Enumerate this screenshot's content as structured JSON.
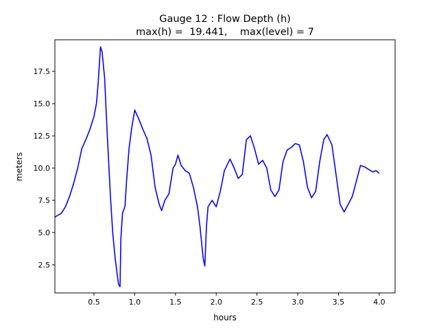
{
  "chart_data": {
    "type": "line",
    "title": "Gauge 12 : Flow Depth (h)",
    "subtitle": "max(h) =  19.441,    max(level) = 7",
    "xlabel": "hours",
    "ylabel": "meters",
    "xlim": [
      0.02,
      4.195
    ],
    "ylim": [
      0.32,
      19.95
    ],
    "xticks": [
      0.5,
      1.0,
      1.5,
      2.0,
      2.5,
      3.0,
      3.5,
      4.0
    ],
    "xtick_labels": [
      "0.5",
      "1.0",
      "1.5",
      "2.0",
      "2.5",
      "3.0",
      "3.5",
      "4.0"
    ],
    "yticks": [
      2.5,
      5.0,
      7.5,
      10.0,
      12.5,
      15.0,
      17.5
    ],
    "ytick_labels": [
      "2.5",
      "5.0",
      "7.5",
      "10.0",
      "12.5",
      "15.0",
      "17.5"
    ],
    "grid": false,
    "series": [
      {
        "name": "h",
        "color": "#0000ff",
        "x": [
          0.02,
          0.1,
          0.15,
          0.2,
          0.25,
          0.3,
          0.35,
          0.4,
          0.45,
          0.5,
          0.53,
          0.55,
          0.58,
          0.6,
          0.63,
          0.66,
          0.7,
          0.73,
          0.76,
          0.8,
          0.82,
          0.83,
          0.85,
          0.88,
          0.9,
          0.93,
          0.96,
          1.0,
          1.05,
          1.1,
          1.15,
          1.2,
          1.25,
          1.3,
          1.33,
          1.37,
          1.42,
          1.47,
          1.5,
          1.53,
          1.57,
          1.62,
          1.67,
          1.72,
          1.77,
          1.8,
          1.84,
          1.86,
          1.88,
          1.9,
          1.95,
          2.0,
          2.05,
          2.1,
          2.17,
          2.22,
          2.27,
          2.32,
          2.37,
          2.42,
          2.47,
          2.52,
          2.57,
          2.62,
          2.67,
          2.72,
          2.77,
          2.82,
          2.87,
          2.92,
          2.97,
          3.02,
          3.07,
          3.12,
          3.17,
          3.22,
          3.27,
          3.32,
          3.36,
          3.42,
          3.47,
          3.52,
          3.57,
          3.62,
          3.67,
          3.72,
          3.77,
          3.82,
          3.87,
          3.92,
          3.96,
          4.0
        ],
        "y": [
          6.2,
          6.5,
          7.0,
          7.8,
          8.8,
          10.0,
          11.5,
          12.2,
          13.0,
          14.0,
          15.0,
          16.5,
          19.4,
          19.0,
          17.0,
          13.0,
          8.0,
          5.0,
          3.0,
          1.0,
          0.8,
          4.5,
          6.5,
          7.0,
          9.0,
          11.5,
          13.0,
          14.5,
          13.8,
          13.0,
          12.3,
          11.0,
          8.5,
          7.2,
          6.7,
          7.5,
          8.0,
          10.0,
          10.3,
          11.0,
          10.2,
          9.8,
          9.6,
          8.5,
          7.0,
          5.5,
          3.0,
          2.4,
          5.5,
          7.0,
          7.5,
          7.0,
          8.2,
          9.8,
          10.7,
          10.0,
          9.2,
          9.5,
          12.2,
          12.5,
          11.5,
          10.3,
          10.6,
          10.0,
          8.3,
          7.8,
          8.3,
          10.5,
          11.4,
          11.6,
          11.9,
          11.8,
          10.5,
          8.5,
          7.7,
          8.2,
          10.5,
          12.2,
          12.6,
          11.8,
          9.5,
          7.2,
          6.6,
          7.2,
          7.8,
          9.0,
          10.2,
          10.1,
          9.9,
          9.7,
          9.8,
          9.6
        ]
      }
    ]
  }
}
